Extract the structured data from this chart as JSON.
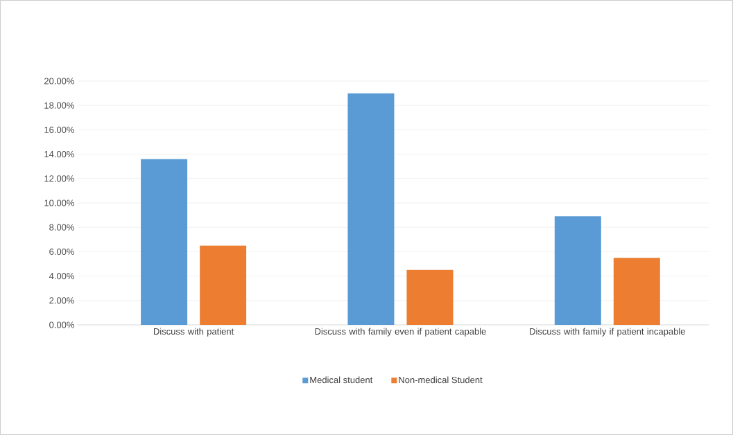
{
  "chart_data": {
    "type": "bar",
    "categories": [
      "Discuss with patient",
      "Discuss with family even if patient capable",
      "Discuss with family if patient incapable"
    ],
    "series": [
      {
        "name": "Medical student",
        "color": "#5b9bd5",
        "values": [
          13.6,
          19.0,
          8.9
        ]
      },
      {
        "name": "Non-medical Student",
        "color": "#ed7d31",
        "values": [
          6.5,
          4.5,
          5.5
        ]
      }
    ],
    "ylim": [
      0,
      20
    ],
    "yticks": [
      {
        "value": 0,
        "label": "0.00%"
      },
      {
        "value": 2,
        "label": "2.00%"
      },
      {
        "value": 4,
        "label": "4.00%"
      },
      {
        "value": 6,
        "label": "6.00%"
      },
      {
        "value": 8,
        "label": "8.00%"
      },
      {
        "value": 10,
        "label": "10.00%"
      },
      {
        "value": 12,
        "label": "12.00%"
      },
      {
        "value": 14,
        "label": "14.00%"
      },
      {
        "value": 16,
        "label": "16.00%"
      },
      {
        "value": 18,
        "label": "18.00%"
      },
      {
        "value": 20,
        "label": "20.00%"
      }
    ],
    "grid": "y",
    "legend": "bottom"
  }
}
